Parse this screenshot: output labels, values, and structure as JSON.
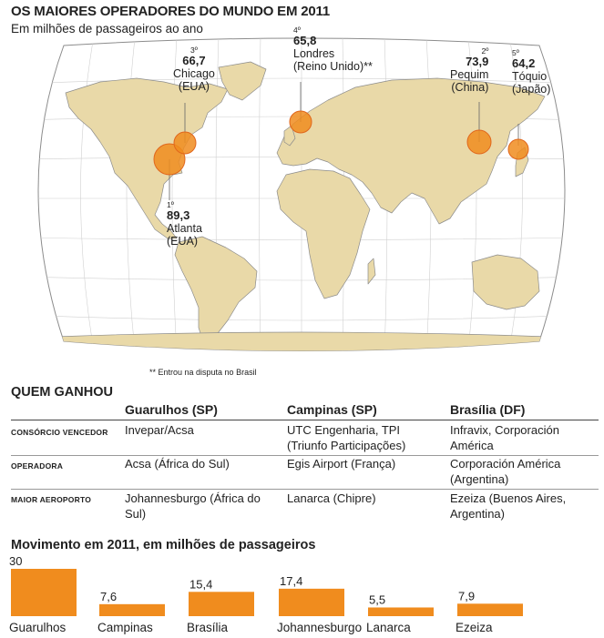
{
  "header": {
    "title": "OS MAIORES OPERADORES DO MUNDO EM 2011",
    "subtitle": "Em milhões de passageiros ao ano"
  },
  "colors": {
    "accent": "#f08c1e",
    "land": "#e9d9a8",
    "ocean": "#ffffff",
    "coast": "#8c8c8c"
  },
  "map_markers": [
    {
      "rank": "1º",
      "value": "89,3",
      "city": "Atlanta",
      "country": "(EUA)"
    },
    {
      "rank": "2º",
      "value": "73,9",
      "city": "Pequim",
      "country": "(China)"
    },
    {
      "rank": "3º",
      "value": "66,7",
      "city": "Chicago",
      "country": "(EUA)"
    },
    {
      "rank": "4º",
      "value": "65,8",
      "city": "Londres",
      "country": "(Reino Unido)**"
    },
    {
      "rank": "5º",
      "value": "64,2",
      "city": "Tóquio",
      "country": "(Japão)"
    }
  ],
  "map_note": "** Entrou na disputa no Brasil",
  "table": {
    "section_title": "QUEM GANHOU",
    "columns": [
      "Guarulhos (SP)",
      "Campinas (SP)",
      "Brasília (DF)"
    ],
    "rows": [
      {
        "label": "CONSÓRCIO VENCEDOR",
        "cells": [
          "Invepar/Acsa",
          "UTC Engenharia, TPI (Triunfo Participações)",
          "Infravix, Corporación América"
        ]
      },
      {
        "label": "OPERADORA",
        "cells": [
          "Acsa (África do Sul)",
          "Egis Airport (França)",
          "Corporación América (Argentina)"
        ]
      },
      {
        "label": "MAIOR AEROPORTO",
        "cells": [
          "Johannesburgo (África do Sul)",
          "Lanarca (Chipre)",
          "Ezeiza (Buenos Aires, Argentina)"
        ]
      }
    ]
  },
  "chart_data": {
    "type": "bar",
    "title": "Movimento em 2011, em milhões de passageiros",
    "categories": [
      "Guarulhos",
      "Campinas",
      "Brasília",
      "Johannesburgo",
      "Lanarca",
      "Ezeiza"
    ],
    "values": [
      30,
      7.6,
      15.4,
      17.4,
      5.5,
      7.9
    ],
    "value_labels": [
      "30",
      "7,6",
      "15,4",
      "17,4",
      "5,5",
      "7,9"
    ],
    "ylim": [
      0,
      30
    ],
    "color": "#f08c1e"
  }
}
